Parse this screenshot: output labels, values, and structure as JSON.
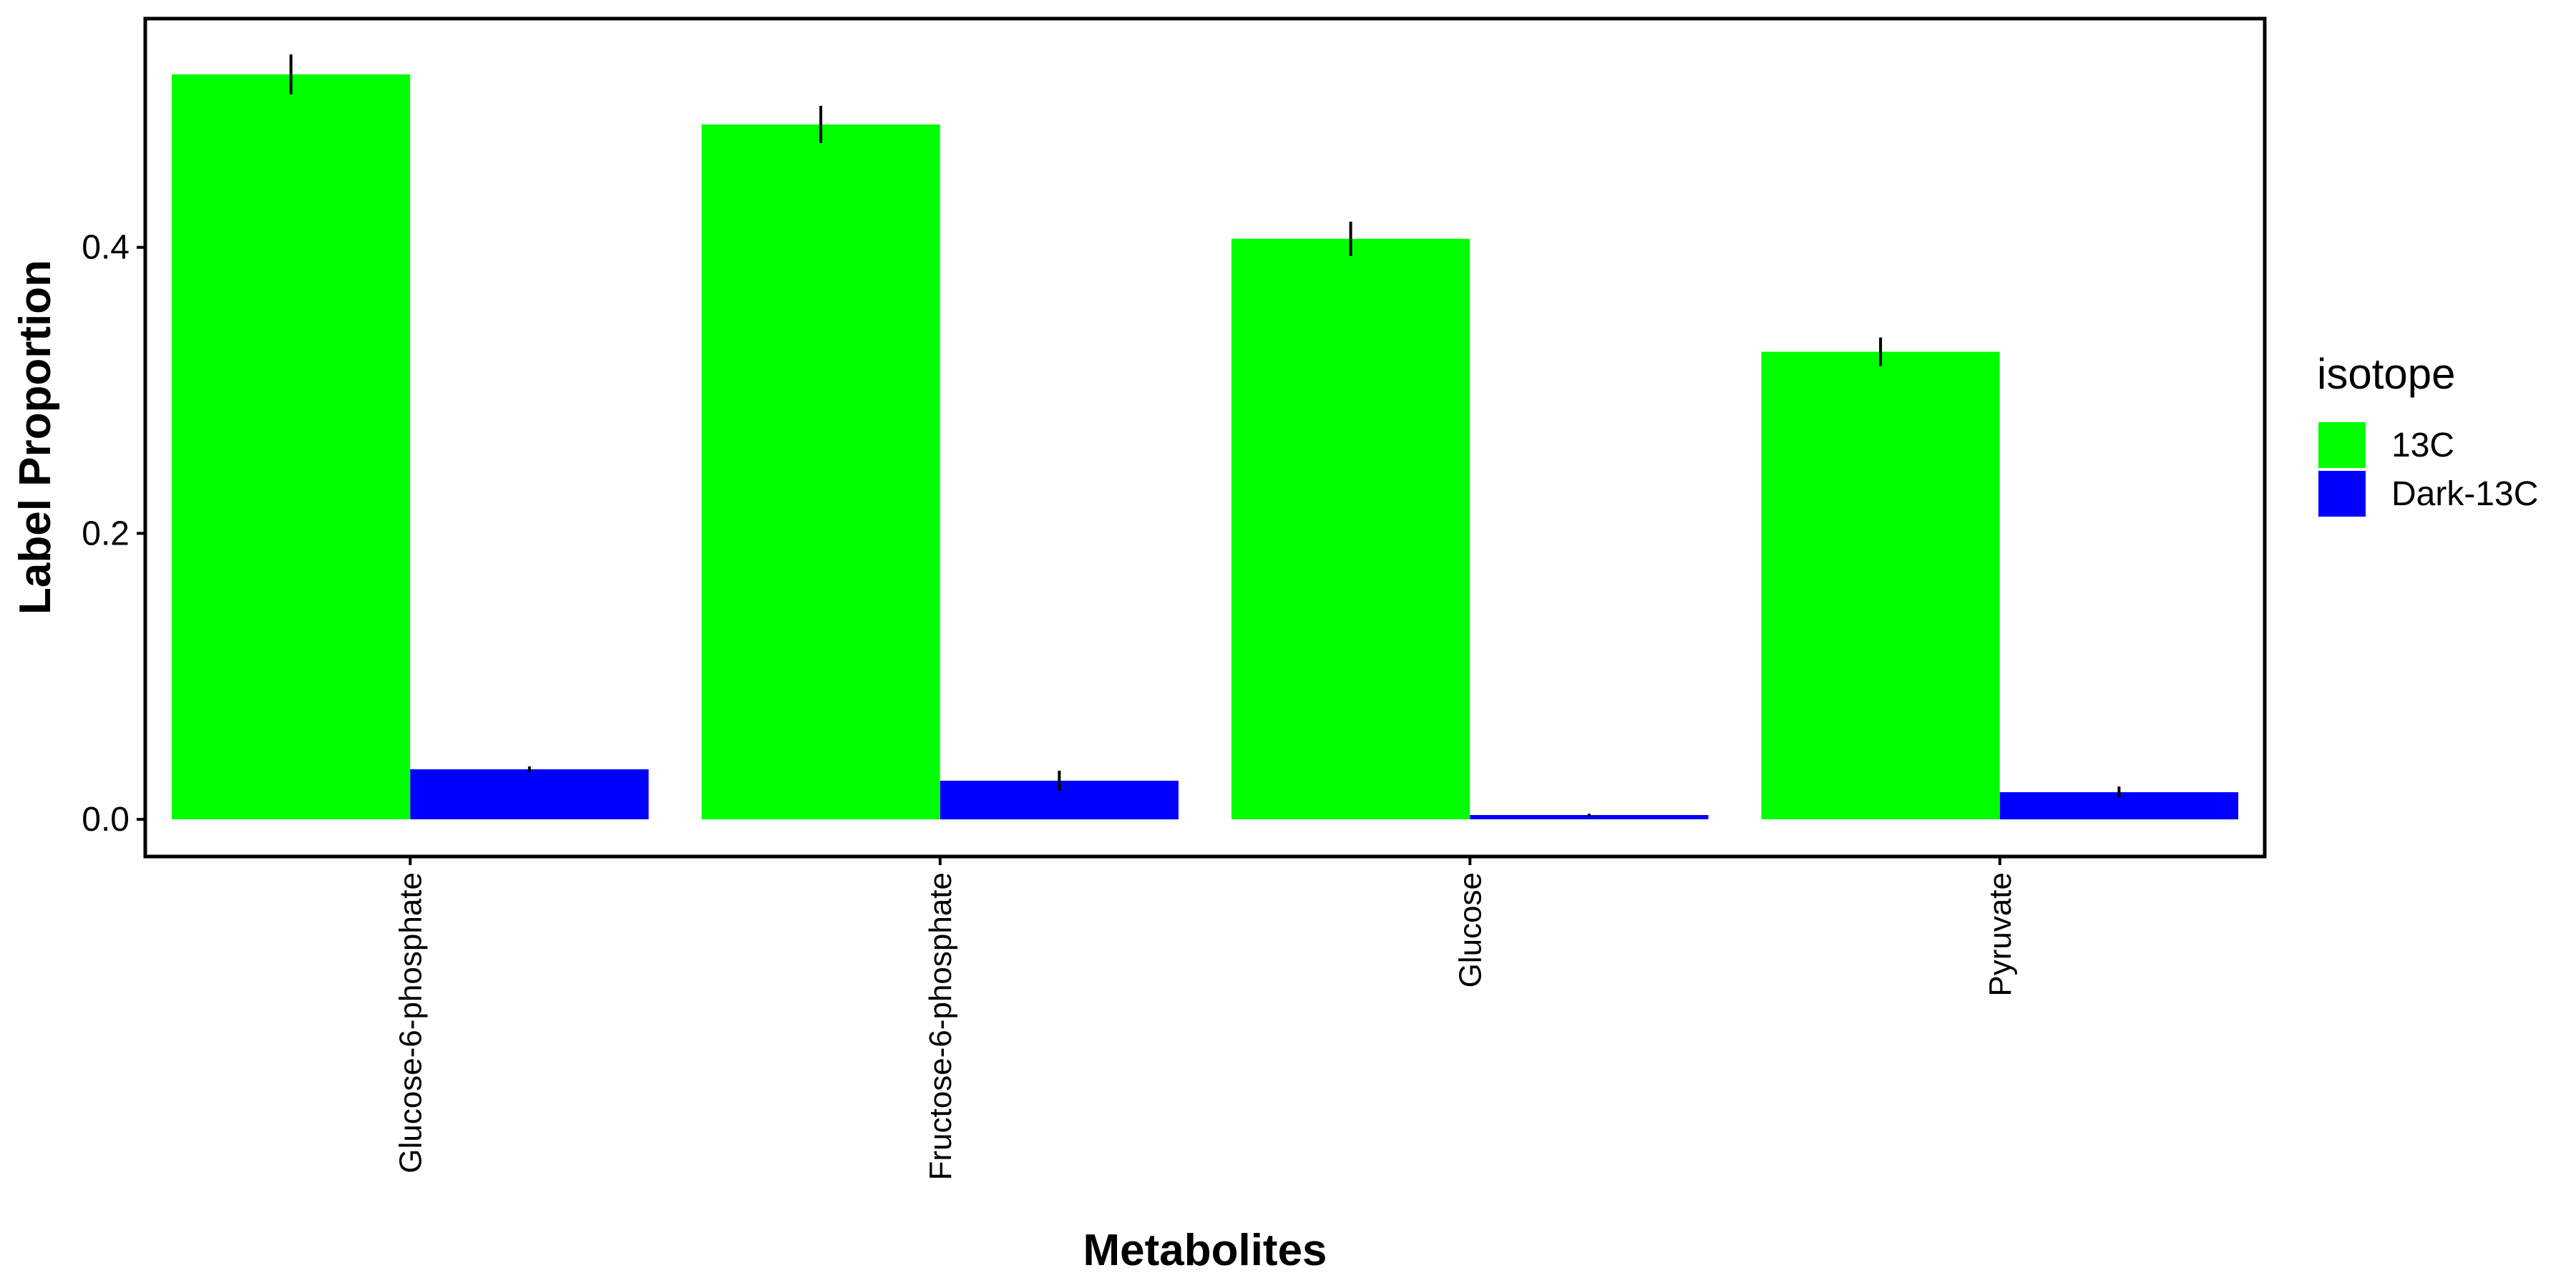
{
  "chart_data": {
    "type": "bar",
    "title": "",
    "xlabel": "Metabolites",
    "ylabel": "Label Proportion",
    "ylim": [
      -0.026,
      0.56
    ],
    "yticks": [
      0.0,
      0.2,
      0.4
    ],
    "ytick_labels": [
      "0.0",
      "0.2",
      "0.4"
    ],
    "grid": false,
    "legend_position": "right",
    "legend_title": "isotope",
    "categories": [
      "Glucose-6-phosphate",
      "Fructose-6-phosphate",
      "Glucose",
      "Pyruvate"
    ],
    "series": [
      {
        "name": "13C",
        "color": "#00ff00",
        "values": [
          0.521,
          0.486,
          0.406,
          0.327
        ],
        "errors": [
          0.014,
          0.013,
          0.012,
          0.01
        ]
      },
      {
        "name": "Dark-13C",
        "color": "#0000ff",
        "values": [
          0.035,
          0.027,
          0.003,
          0.019
        ],
        "errors": [
          0.002,
          0.007,
          0.001,
          0.004
        ]
      }
    ]
  }
}
